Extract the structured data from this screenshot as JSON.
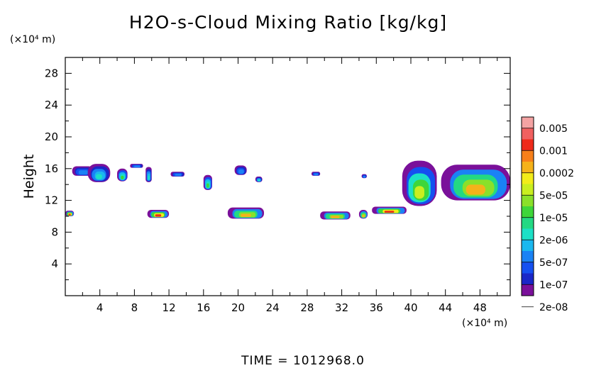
{
  "chart_data": {
    "type": "heatmap",
    "title": "H2O-s-Cloud Mixing Ratio [kg/kg]",
    "ylabel": "Height",
    "x_unit_label": "(×10⁴ m)",
    "y_unit_label": "(×10⁴ m)",
    "xlim": [
      0,
      51.5
    ],
    "ylim": [
      0,
      30
    ],
    "x_ticks": [
      "4",
      "8",
      "12",
      "16",
      "20",
      "24",
      "28",
      "32",
      "36",
      "40",
      "44",
      "48"
    ],
    "y_ticks": [
      "4",
      "8",
      "12",
      "16",
      "20",
      "24",
      "28"
    ],
    "footer": "TIME = 1012968.0",
    "grid": false,
    "legend_placement": "colorbar-right",
    "colorbar": {
      "labels": [
        "0.005",
        "0.001",
        "0.0002",
        "5e-05",
        "1e-05",
        "2e-06",
        "5e-07",
        "1e-07",
        "2e-08"
      ],
      "colors": [
        "#f4a3a3",
        "#f06060",
        "#ee2a1a",
        "#f77f1a",
        "#f5b21a",
        "#f2ec1a",
        "#c9ee20",
        "#8ae02a",
        "#3ed63a",
        "#23d983",
        "#1ce0c6",
        "#1ab8ef",
        "#1a82f5",
        "#1550f0",
        "#1a27c8",
        "#7a109a"
      ]
    },
    "cloud_regions": [
      {
        "name": "upper-cloud-1",
        "x": [
          0.8,
          3.2
        ],
        "y": [
          15.1,
          16.3
        ],
        "level": "1e-07"
      },
      {
        "name": "upper-cloud-2",
        "x": [
          2.6,
          5.2
        ],
        "y": [
          14.3,
          16.6
        ],
        "level": "5e-07"
      },
      {
        "name": "upper-cloud-3",
        "x": [
          6.0,
          7.2
        ],
        "y": [
          14.4,
          16.0
        ],
        "level": "2e-06"
      },
      {
        "name": "upper-cloud-4",
        "x": [
          7.5,
          9.0
        ],
        "y": [
          16.1,
          16.6
        ],
        "level": "1e-07"
      },
      {
        "name": "upper-cloud-5",
        "x": [
          9.3,
          10.0
        ],
        "y": [
          14.3,
          16.2
        ],
        "level": "5e-07"
      },
      {
        "name": "upper-cloud-6",
        "x": [
          12.2,
          13.8
        ],
        "y": [
          15.0,
          15.6
        ],
        "level": "1e-07"
      },
      {
        "name": "upper-cloud-7",
        "x": [
          16.0,
          17.0
        ],
        "y": [
          13.3,
          15.2
        ],
        "level": "2e-06"
      },
      {
        "name": "upper-cloud-8",
        "x": [
          19.6,
          21.0
        ],
        "y": [
          15.2,
          16.4
        ],
        "level": "1e-07"
      },
      {
        "name": "upper-cloud-9",
        "x": [
          22.0,
          22.8
        ],
        "y": [
          14.3,
          15.0
        ],
        "level": "5e-07"
      },
      {
        "name": "upper-cloud-10",
        "x": [
          28.5,
          29.5
        ],
        "y": [
          15.1,
          15.6
        ],
        "level": "1e-07"
      },
      {
        "name": "upper-cloud-11",
        "x": [
          34.3,
          34.9
        ],
        "y": [
          14.8,
          15.3
        ],
        "level": "1e-07"
      },
      {
        "name": "deep-cloud-1",
        "x": [
          39.0,
          43.0
        ],
        "y": [
          11.3,
          17.0
        ],
        "level": "1e-05"
      },
      {
        "name": "deep-cloud-2",
        "x": [
          43.5,
          51.5
        ],
        "y": [
          12.0,
          16.5
        ],
        "level": "5e-05"
      },
      {
        "name": "lower-cloud-1",
        "x": [
          0.0,
          1.0
        ],
        "y": [
          10.0,
          10.7
        ],
        "level": "0.0002"
      },
      {
        "name": "lower-cloud-2",
        "x": [
          9.5,
          12.0
        ],
        "y": [
          9.8,
          10.8
        ],
        "level": "0.0002"
      },
      {
        "name": "lower-cloud-3",
        "x": [
          18.8,
          23.0
        ],
        "y": [
          9.7,
          11.1
        ],
        "level": "5e-05"
      },
      {
        "name": "lower-cloud-4",
        "x": [
          29.5,
          33.0
        ],
        "y": [
          9.6,
          10.6
        ],
        "level": "5e-05"
      },
      {
        "name": "lower-cloud-5",
        "x": [
          34.0,
          35.0
        ],
        "y": [
          9.7,
          10.8
        ],
        "level": "5e-05"
      },
      {
        "name": "lower-cloud-6",
        "x": [
          35.5,
          39.5
        ],
        "y": [
          10.3,
          11.2
        ],
        "level": "0.0002"
      }
    ]
  }
}
